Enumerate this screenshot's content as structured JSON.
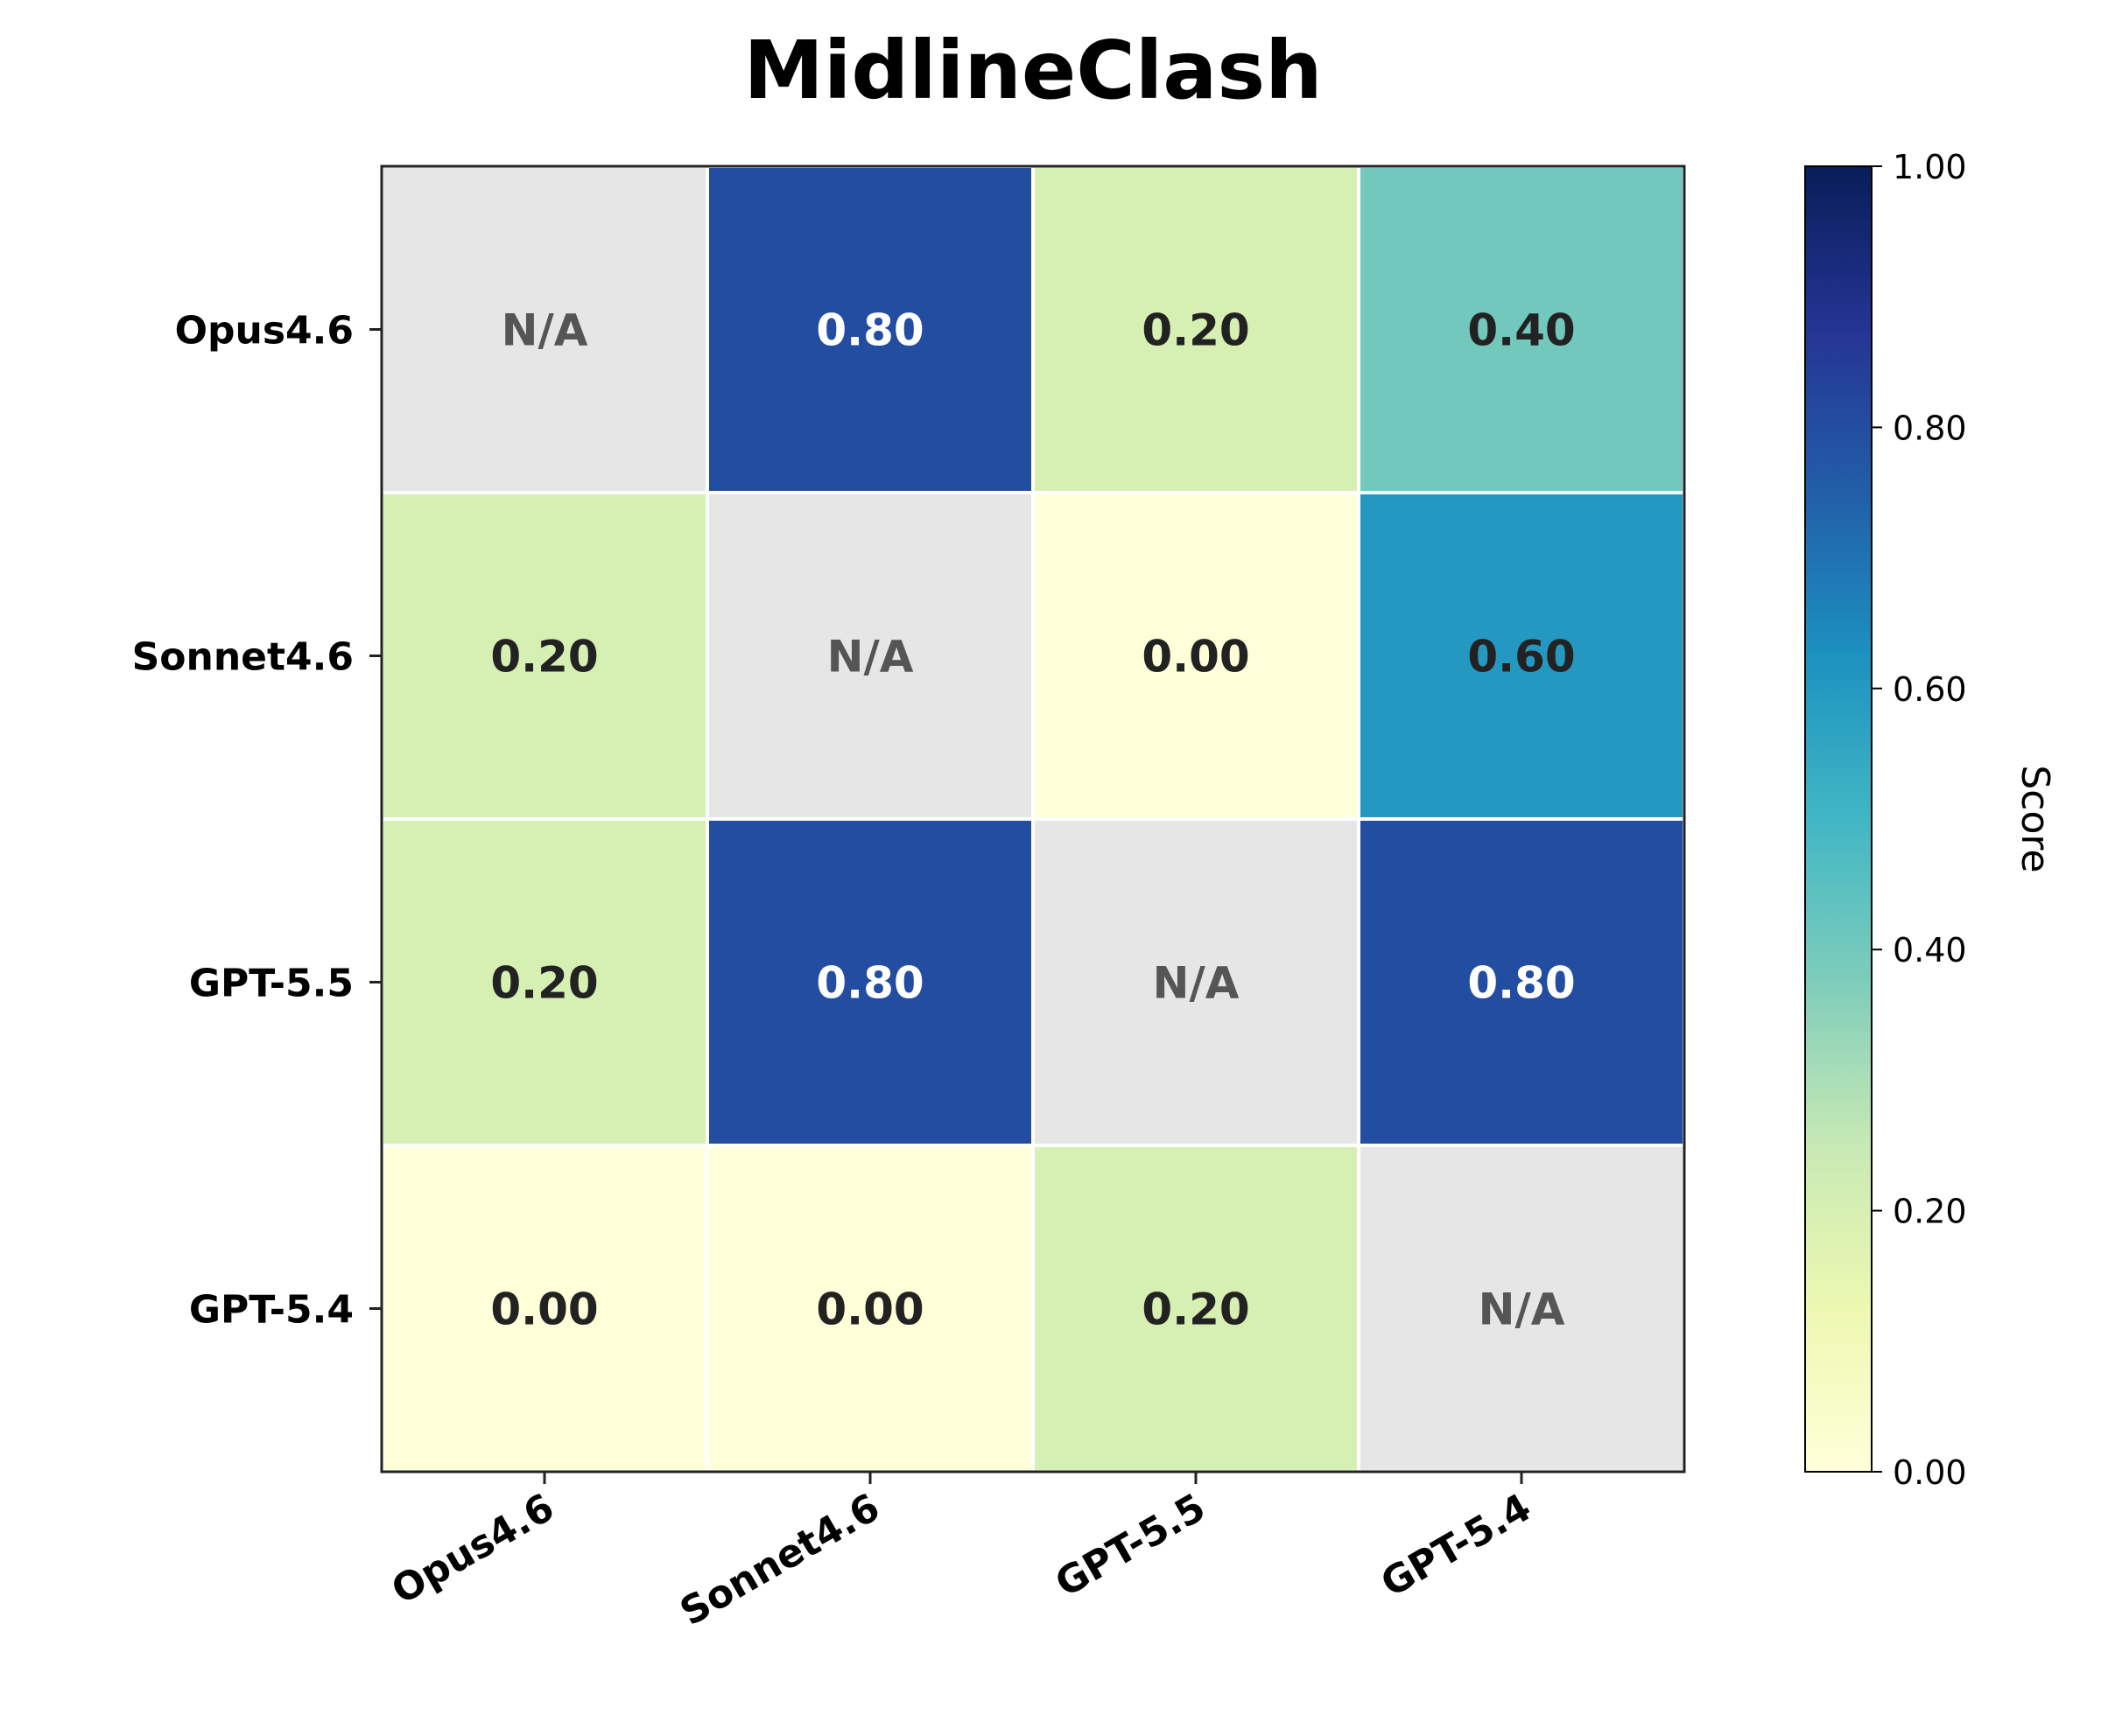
{
  "chart_data": {
    "type": "heatmap",
    "title": "MidlineClash",
    "rows": [
      "Opus4.6",
      "Sonnet4.6",
      "GPT-5.5",
      "GPT-5.4"
    ],
    "columns": [
      "Opus4.6",
      "Sonnet4.6",
      "GPT-5.5",
      "GPT-5.4"
    ],
    "values": [
      [
        null,
        0.8,
        0.2,
        0.4
      ],
      [
        0.2,
        null,
        0.0,
        0.6
      ],
      [
        0.2,
        0.8,
        null,
        0.8
      ],
      [
        0.0,
        0.0,
        0.2,
        null
      ]
    ],
    "cell_labels": [
      [
        "N/A",
        "0.80",
        "0.20",
        "0.40"
      ],
      [
        "0.20",
        "N/A",
        "0.00",
        "0.60"
      ],
      [
        "0.20",
        "0.80",
        "N/A",
        "0.80"
      ],
      [
        "0.00",
        "0.00",
        "0.20",
        "N/A"
      ]
    ],
    "missing_label": "N/A",
    "missing_color": "#e6e6e6",
    "colormap": "YlGnBu",
    "colorbar": {
      "label": "Score",
      "range": [
        0,
        1
      ],
      "ticks": [
        "0.00",
        "0.20",
        "0.40",
        "0.60",
        "0.80",
        "1.00"
      ]
    }
  },
  "colors": {
    "label_dark": "#222222",
    "label_light": "#ffffff",
    "label_missing": "#555555",
    "frame": "#222222",
    "cell_border": "#ffffff"
  }
}
